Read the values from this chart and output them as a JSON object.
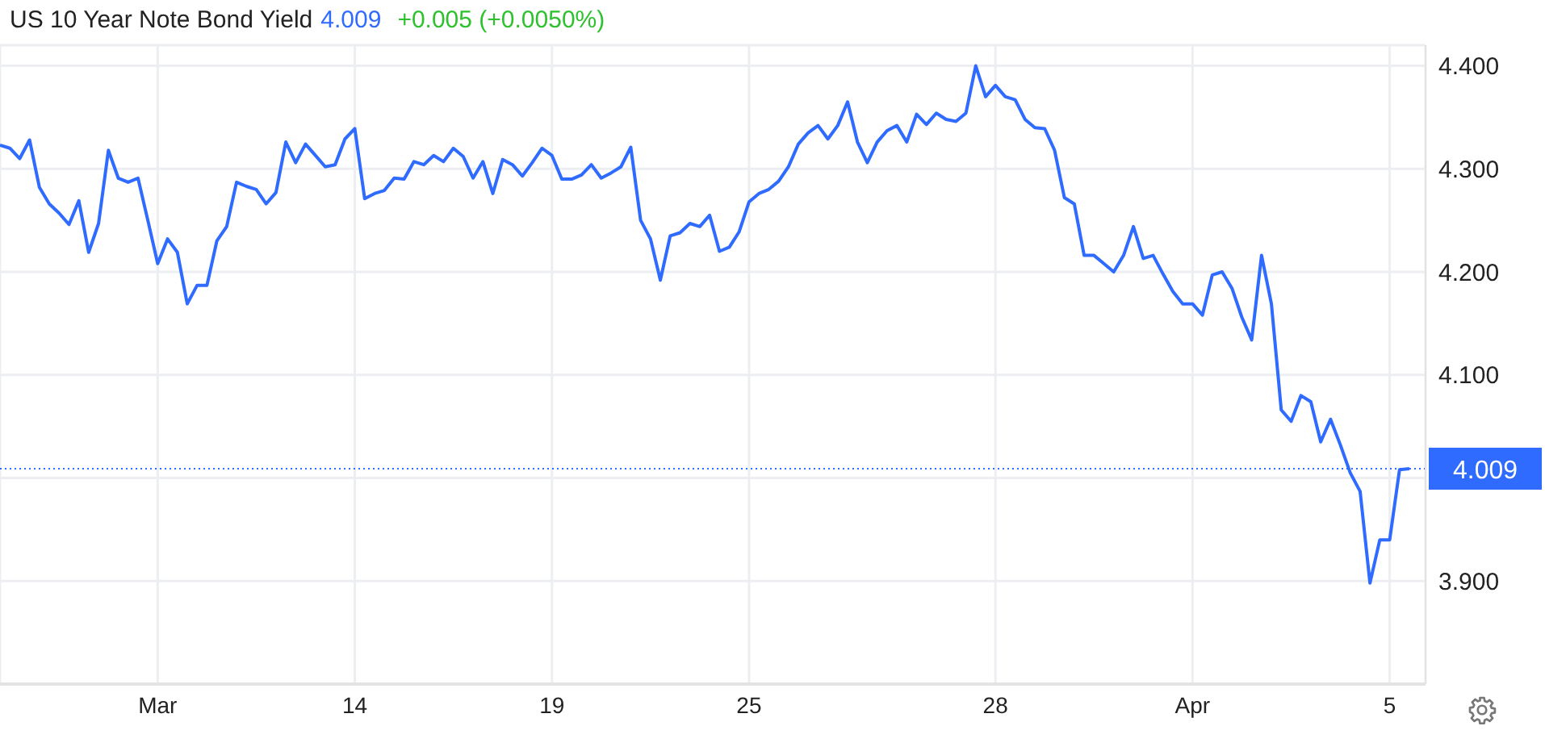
{
  "chart_data": {
    "type": "line",
    "title": "US 10 Year Note Bond Yield",
    "annotations": [
      "4.009",
      "+0.005 (+0.0050%)"
    ],
    "categories": [
      null,
      null,
      null,
      null,
      null,
      null,
      null,
      null,
      null,
      null,
      null,
      null,
      null,
      null,
      null,
      null,
      "Mar",
      null,
      null,
      null,
      null,
      null,
      null,
      null,
      null,
      null,
      null,
      null,
      null,
      null,
      null,
      null,
      null,
      null,
      null,
      null,
      "14",
      null,
      null,
      null,
      null,
      null,
      null,
      null,
      null,
      null,
      null,
      null,
      null,
      null,
      null,
      null,
      null,
      null,
      null,
      null,
      "19",
      null,
      null,
      null,
      null,
      null,
      null,
      null,
      null,
      null,
      null,
      null,
      null,
      null,
      null,
      null,
      null,
      null,
      null,
      null,
      "25",
      null,
      null,
      null,
      null,
      null,
      null,
      null,
      null,
      null,
      null,
      null,
      null,
      null,
      null,
      null,
      null,
      null,
      null,
      null,
      null,
      null,
      null,
      null,
      null,
      "28",
      null,
      null,
      null,
      null,
      null,
      null,
      null,
      null,
      null,
      null,
      null,
      null,
      null,
      null,
      null,
      null,
      null,
      null,
      null,
      "Apr",
      null,
      null,
      null,
      null,
      null,
      null,
      null,
      null,
      null,
      null,
      null,
      null,
      null,
      null,
      null,
      null,
      null,
      null,
      null,
      "5",
      null,
      null
    ],
    "series": [
      {
        "color": "#2f6bff",
        "values": [
          4.323,
          4.32,
          4.31,
          4.328,
          4.282,
          4.266,
          4.257,
          4.246,
          4.269,
          4.219,
          4.247,
          4.318,
          4.291,
          4.287,
          4.291,
          4.25,
          4.208,
          4.232,
          4.219,
          4.169,
          4.187,
          4.187,
          4.23,
          4.244,
          4.287,
          4.283,
          4.28,
          4.266,
          4.277,
          4.326,
          4.306,
          4.324,
          4.313,
          4.302,
          4.304,
          4.329,
          4.339,
          4.271,
          4.276,
          4.279,
          4.291,
          4.29,
          4.307,
          4.304,
          4.313,
          4.307,
          4.32,
          4.312,
          4.291,
          4.307,
          4.276,
          4.309,
          4.304,
          4.293,
          4.306,
          4.32,
          4.313,
          4.29,
          4.29,
          4.294,
          4.304,
          4.291,
          4.296,
          4.302,
          4.321,
          4.25,
          4.232,
          4.192,
          4.235,
          4.238,
          4.247,
          4.244,
          4.255,
          4.22,
          4.224,
          4.239,
          4.268,
          4.276,
          4.28,
          4.288,
          4.302,
          4.324,
          4.335,
          4.342,
          4.329,
          4.342,
          4.365,
          4.326,
          4.306,
          4.326,
          4.337,
          4.342,
          4.326,
          4.353,
          4.343,
          4.354,
          4.348,
          4.346,
          4.354,
          4.4,
          4.37,
          4.381,
          4.37,
          4.367,
          4.348,
          4.34,
          4.339,
          4.318,
          4.272,
          4.266,
          4.216,
          4.216,
          4.208,
          4.2,
          4.216,
          4.244,
          4.213,
          4.216,
          4.198,
          4.181,
          4.169,
          4.169,
          4.158,
          4.197,
          4.2,
          4.184,
          4.156,
          4.134,
          4.216,
          4.169,
          4.066,
          4.055,
          4.08,
          4.074,
          4.035,
          4.057,
          4.032,
          4.005,
          3.987,
          3.898,
          3.94,
          3.94,
          4.008,
          4.009
        ]
      }
    ],
    "ylim": [
      3.8,
      4.42
    ],
    "yticks": [
      {
        "value": 3.9,
        "label": "3.900"
      },
      {
        "value": 4.0,
        "label": null
      },
      {
        "value": 4.1,
        "label": "4.100"
      },
      {
        "value": 4.2,
        "label": "4.200"
      },
      {
        "value": 4.3,
        "label": "4.300"
      },
      {
        "value": 4.4,
        "label": "4.400"
      }
    ],
    "ref_lines": [
      {
        "axis": "y",
        "value": 4.009,
        "label": "4.009",
        "color": "#2f6bff",
        "line_style": "dotted"
      }
    ],
    "grid": true,
    "legend": false,
    "marker": "none",
    "line_style": "solid"
  }
}
